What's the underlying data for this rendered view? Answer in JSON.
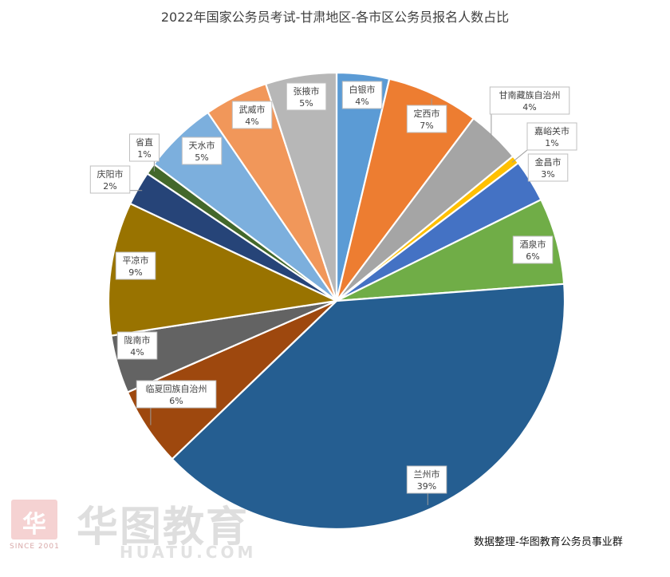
{
  "chart_data": {
    "type": "pie",
    "title": "2022年国家公务员考试-甘肃地区-各市区公务员报名人数占比",
    "source_note": "数据整理-华图教育公务员事业群",
    "start_angle_deg": 0,
    "direction": "clockwise",
    "slices": [
      {
        "label": "白银市",
        "pct_text": "4%",
        "value": 3.7,
        "color": "#5b9bd5"
      },
      {
        "label": "定西市",
        "pct_text": "7%",
        "value": 6.5,
        "color": "#ed7d31"
      },
      {
        "label": "甘南藏族自治州",
        "pct_text": "4%",
        "value": 3.8,
        "color": "#a5a5a5"
      },
      {
        "label": "嘉峪关市",
        "pct_text": "1%",
        "value": 0.6,
        "color": "#ffc000"
      },
      {
        "label": "金昌市",
        "pct_text": "3%",
        "value": 3.0,
        "color": "#4472c4"
      },
      {
        "label": "酒泉市",
        "pct_text": "6%",
        "value": 6.1,
        "color": "#70ad47"
      },
      {
        "label": "兰州市",
        "pct_text": "39%",
        "value": 38.8,
        "color": "#255e91"
      },
      {
        "label": "临夏回族自治州",
        "pct_text": "6%",
        "value": 5.6,
        "color": "#9e480e"
      },
      {
        "label": "陇南市",
        "pct_text": "4%",
        "value": 4.1,
        "color": "#636363"
      },
      {
        "label": "平凉市",
        "pct_text": "9%",
        "value": 9.4,
        "color": "#997300"
      },
      {
        "label": "庆阳市",
        "pct_text": "2%",
        "value": 2.4,
        "color": "#264478"
      },
      {
        "label": "省直",
        "pct_text": "1%",
        "value": 0.8,
        "color": "#43682b"
      },
      {
        "label": "天水市",
        "pct_text": "5%",
        "value": 5.2,
        "color": "#7cafdd"
      },
      {
        "label": "武威市",
        "pct_text": "4%",
        "value": 4.5,
        "color": "#f1975a"
      },
      {
        "label": "张掖市",
        "pct_text": "5%",
        "value": 5.0,
        "color": "#b7b7b7"
      }
    ]
  },
  "watermark": {
    "logo_glyph": "华",
    "since": "SINCE 2001",
    "brand": "华图教育",
    "site": "HUATU.COM"
  }
}
